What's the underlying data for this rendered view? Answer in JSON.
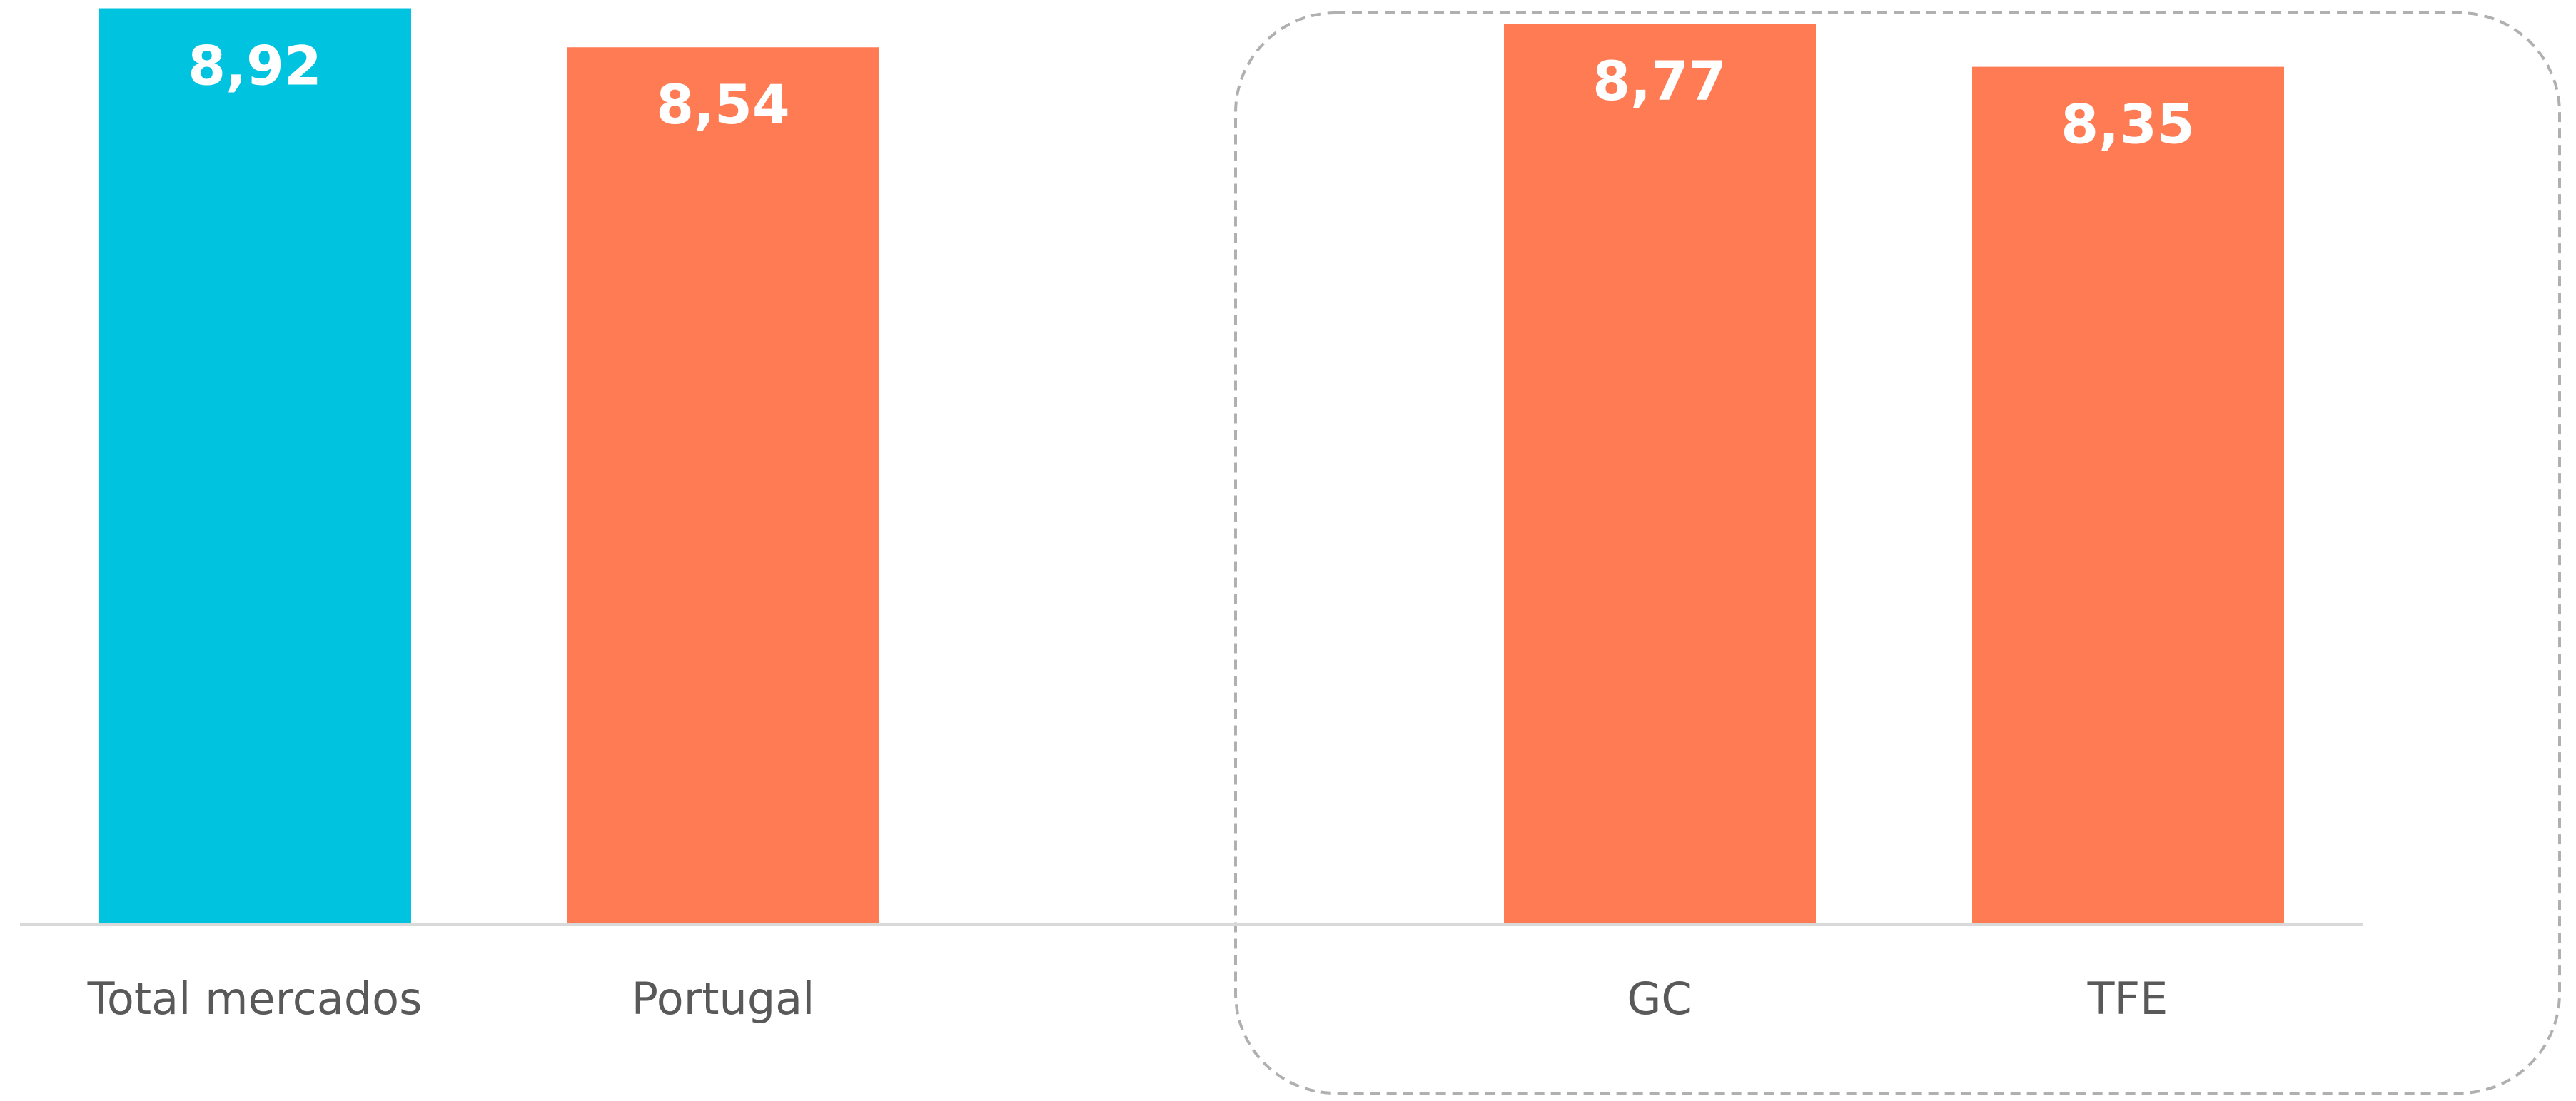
{
  "chart_data": {
    "type": "bar",
    "categories": [
      "Total mercados",
      "Portugal",
      null,
      "GC",
      "TFE"
    ],
    "values": [
      8.92,
      8.54,
      null,
      8.77,
      8.35
    ],
    "value_labels": [
      "8,92",
      "8,54",
      null,
      "8,77",
      "8,35"
    ],
    "colors": [
      "#00c3e0",
      "#ff7b54",
      null,
      "#ff7b54",
      "#ff7b54"
    ],
    "ylim": [
      0,
      9
    ]
  }
}
